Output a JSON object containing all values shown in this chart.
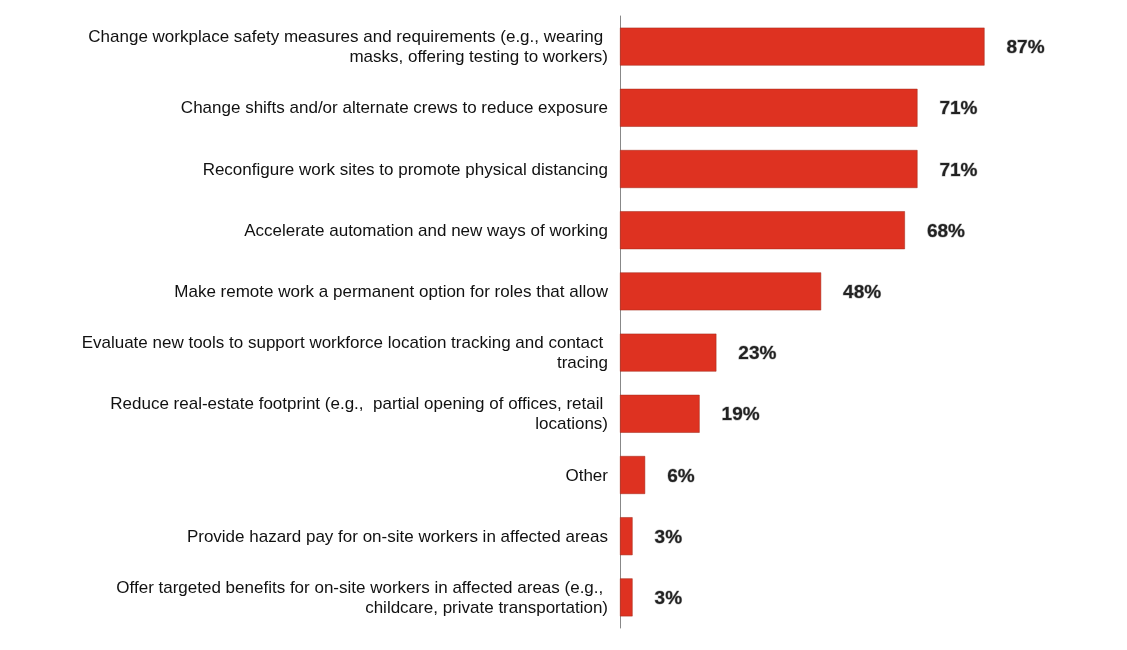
{
  "chart_data": {
    "type": "bar",
    "orientation": "horizontal",
    "categories": [
      "Change workplace safety measures and requirements (e.g., wearing masks, offering testing to workers)",
      "Change shifts and/or alternate crews to reduce exposure",
      "Reconfigure work sites to promote physical distancing",
      "Accelerate automation and new ways of working",
      "Make remote work a permanent option for roles that allow",
      "Evaluate new tools to support workforce location tracking and contact tracing",
      "Reduce real-estate footprint (e.g.,  partial opening of offices, retail locations)",
      "Other",
      "Provide hazard pay for on-site workers in affected areas",
      "Offer targeted benefits for on-site workers in affected areas (e.g., childcare, private transportation)"
    ],
    "values": [
      87,
      71,
      71,
      68,
      48,
      23,
      19,
      6,
      3,
      3
    ],
    "value_labels": [
      "87%",
      "71%",
      "71%",
      "68%",
      "48%",
      "23%",
      "19%",
      "6%",
      "3%",
      "3%"
    ],
    "color": "#de3221",
    "tick_labels": "y"
  }
}
